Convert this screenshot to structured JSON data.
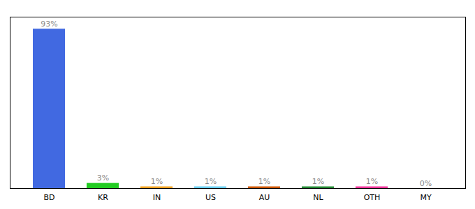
{
  "chart_data": {
    "type": "bar",
    "categories": [
      "BD",
      "KR",
      "IN",
      "US",
      "AU",
      "NL",
      "OTH",
      "MY"
    ],
    "values": [
      93,
      3,
      1,
      1,
      1,
      1,
      1,
      0
    ],
    "value_labels": [
      "93%",
      "3%",
      "1%",
      "1%",
      "1%",
      "1%",
      "1%",
      "0%"
    ],
    "colors": [
      "#4169e1",
      "#22cc22",
      "#f0a020",
      "#66ccee",
      "#cc5500",
      "#228833",
      "#ee3399",
      "#aaaaaa"
    ],
    "ylim": [
      0,
      100
    ],
    "data_labels": true,
    "tick_labels": "x"
  }
}
